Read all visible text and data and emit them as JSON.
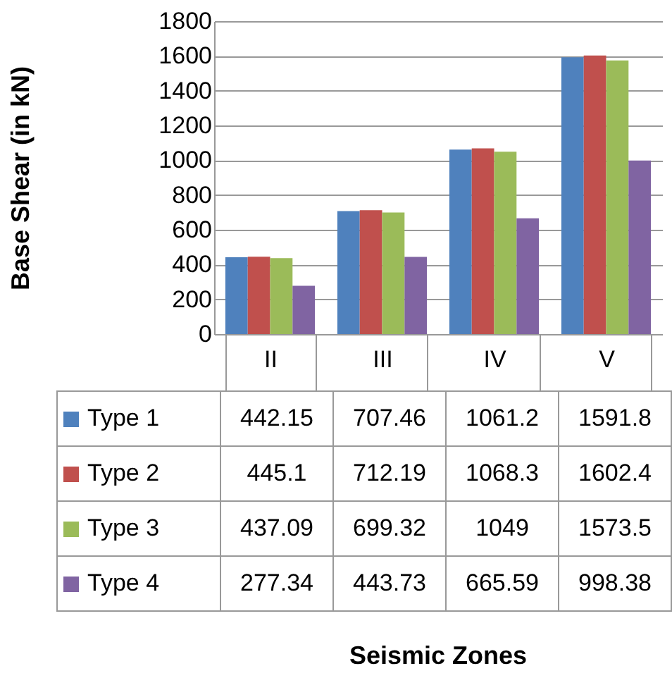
{
  "chart_data": {
    "type": "bar",
    "annotations": [
      "Seismic Zones"
    ],
    "ylabel": "Base Shear (in kN)",
    "categories": [
      "II",
      "III",
      "IV",
      "V"
    ],
    "series": [
      {
        "name": "Type 1",
        "color": "#4f81bd",
        "values": [
          442.15,
          707.46,
          1061.2,
          1591.8
        ]
      },
      {
        "name": "Type 2",
        "color": "#c0504d",
        "values": [
          445.1,
          712.19,
          1068.3,
          1602.4
        ]
      },
      {
        "name": "Type 3",
        "color": "#9bbb59",
        "values": [
          437.09,
          699.32,
          1049,
          1573.5
        ]
      },
      {
        "name": "Type 4",
        "color": "#8064a2",
        "values": [
          277.34,
          443.73,
          665.59,
          998.38
        ]
      }
    ],
    "ylim": [
      0,
      1800
    ],
    "yticks": [
      0,
      200,
      400,
      600,
      800,
      1000,
      1200,
      1400,
      1600,
      1800
    ],
    "grid": "y",
    "legend": "bottom",
    "data_labels": true
  }
}
